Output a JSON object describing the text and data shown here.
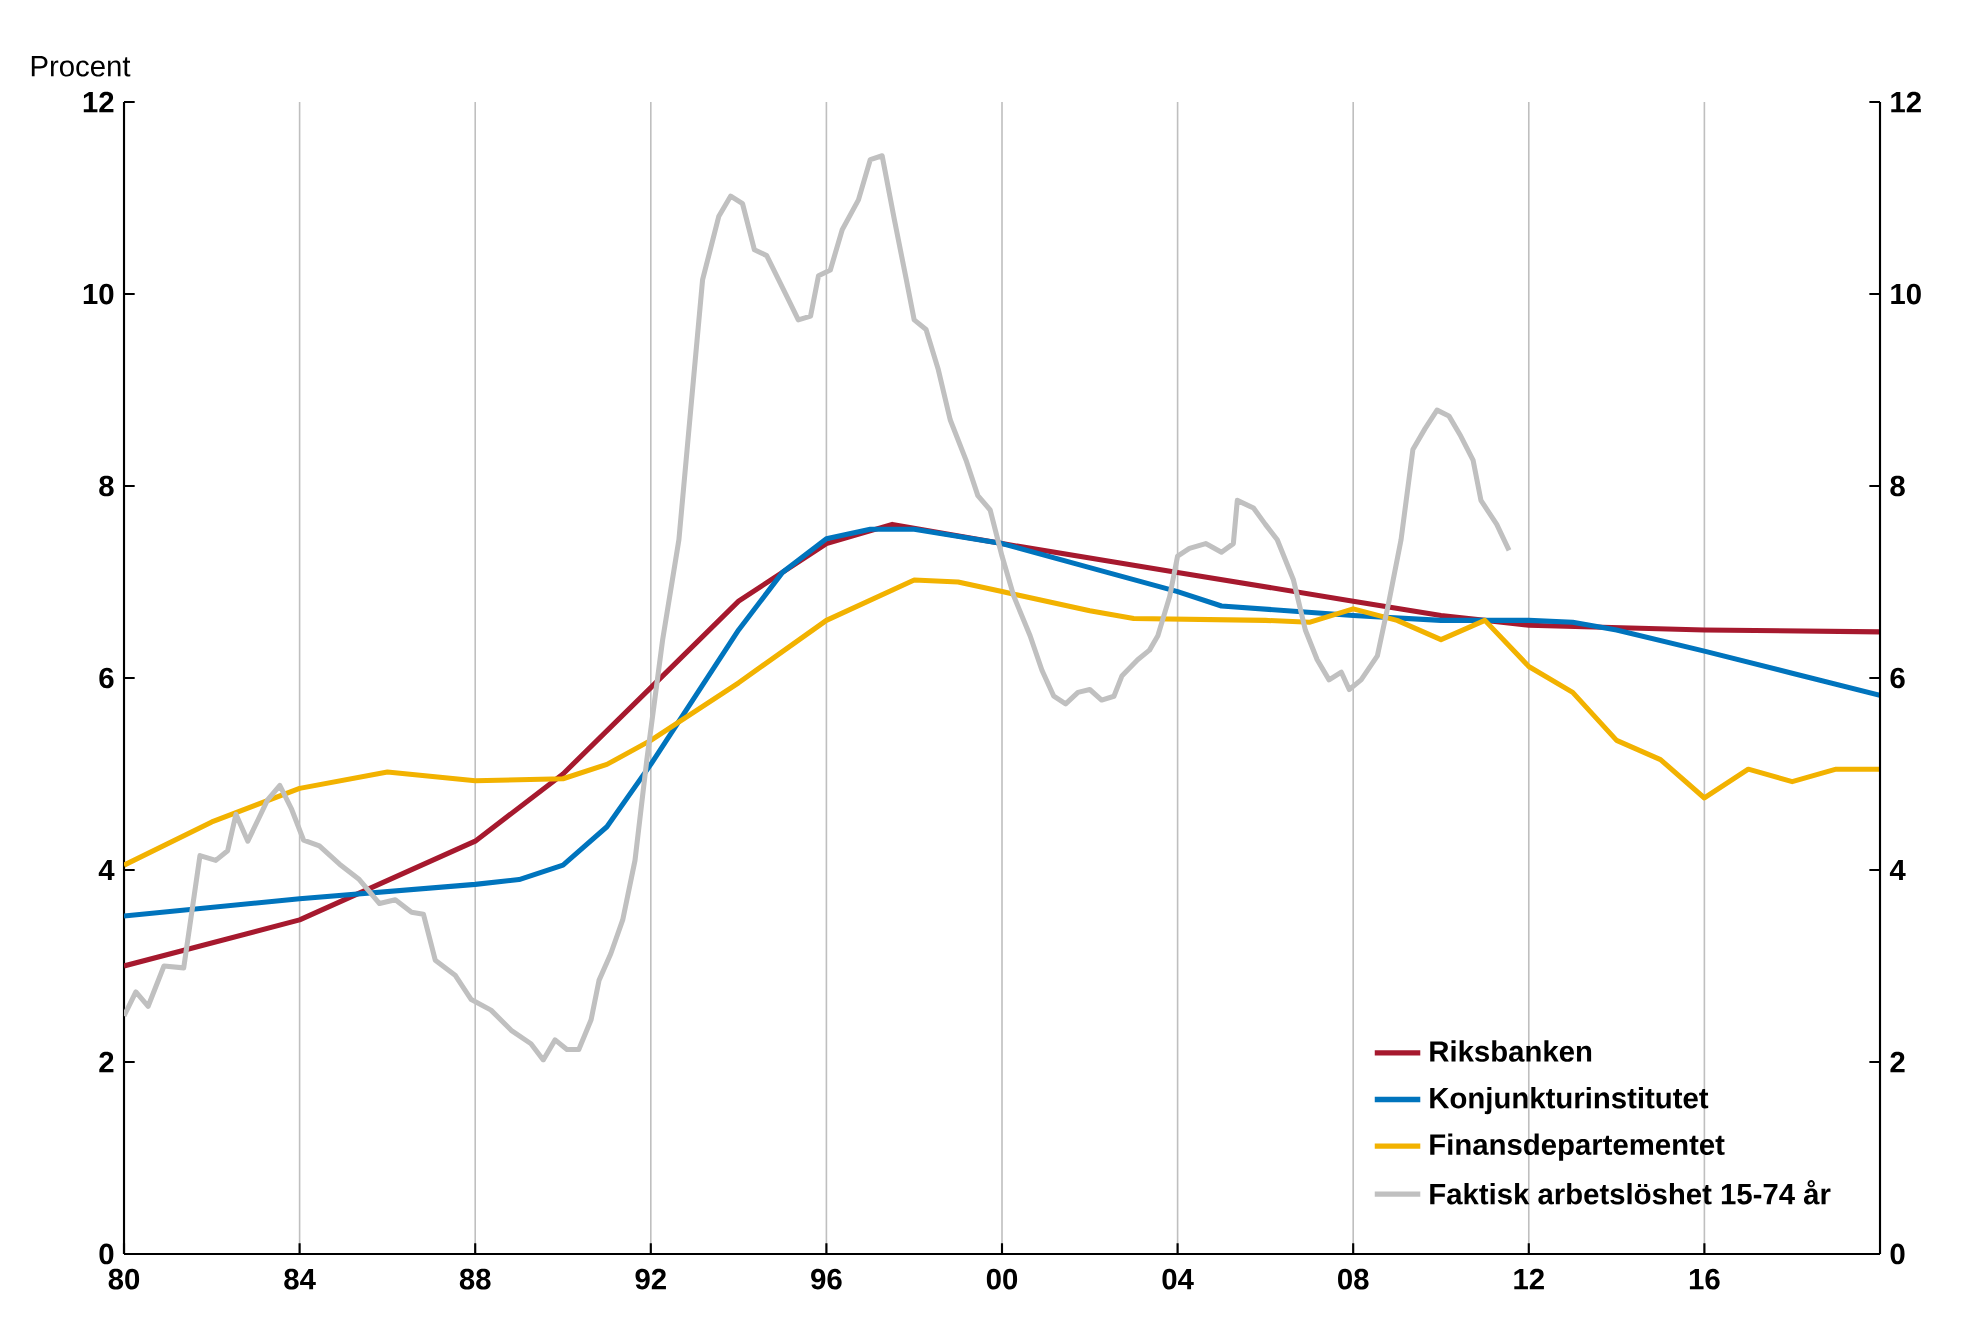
{
  "chart_data": {
    "type": "line",
    "ylabel": "Procent",
    "xlim": [
      1980,
      2020
    ],
    "ylim": [
      0,
      12
    ],
    "y2lim": [
      0,
      12
    ],
    "xticks": [
      {
        "value": 1980,
        "label": "80"
      },
      {
        "value": 1984,
        "label": "84"
      },
      {
        "value": 1988,
        "label": "88"
      },
      {
        "value": 1992,
        "label": "92"
      },
      {
        "value": 1996,
        "label": "96"
      },
      {
        "value": 2000,
        "label": "00"
      },
      {
        "value": 2004,
        "label": "04"
      },
      {
        "value": 2008,
        "label": "08"
      },
      {
        "value": 2012,
        "label": "12"
      },
      {
        "value": 2016,
        "label": "16"
      }
    ],
    "yticks": [
      0,
      2,
      4,
      6,
      8,
      10,
      12
    ],
    "y2ticks": [
      0,
      2,
      4,
      6,
      8,
      10,
      12
    ],
    "grid": "x",
    "legend": "bottom right",
    "marker": "none",
    "line_style": "solid",
    "series": [
      {
        "name": "Riksbanken",
        "color": "#a6192e",
        "x": [
          1980,
          1984,
          1988,
          1990,
          1992,
          1994,
          1996,
          1997.5,
          2000,
          2002,
          2004,
          2006,
          2008,
          2010,
          2012,
          2016,
          2020
        ],
        "values": [
          3.0,
          3.48,
          4.3,
          5.0,
          5.9,
          6.8,
          7.4,
          7.6,
          7.4,
          7.25,
          7.1,
          6.95,
          6.8,
          6.65,
          6.55,
          6.5,
          6.48
        ]
      },
      {
        "name": "Konjunkturinstitutet",
        "color": "#0074bd",
        "x": [
          1980,
          1984,
          1988,
          1989,
          1990,
          1991,
          1992,
          1993,
          1994,
          1995,
          1996,
          1997,
          1998,
          2000,
          2002,
          2004,
          2005,
          2008,
          2010,
          2012,
          2013,
          2014,
          2016,
          2018,
          2020
        ],
        "values": [
          3.52,
          3.7,
          3.85,
          3.9,
          4.05,
          4.45,
          5.1,
          5.8,
          6.5,
          7.1,
          7.45,
          7.55,
          7.55,
          7.4,
          7.15,
          6.9,
          6.75,
          6.65,
          6.6,
          6.6,
          6.58,
          6.5,
          6.28,
          6.05,
          5.82
        ]
      },
      {
        "name": "Finansdepartementet",
        "color": "#f2b200",
        "x": [
          1980,
          1982,
          1984,
          1986,
          1988,
          1990,
          1991,
          1992,
          1994,
          1996,
          1998,
          1999,
          2000,
          2002,
          2003,
          2006,
          2007,
          2008,
          2009,
          2010,
          2011,
          2012,
          2013,
          2014,
          2015,
          2016,
          2017,
          2018,
          2019,
          2020
        ],
        "values": [
          4.05,
          4.5,
          4.85,
          5.02,
          4.93,
          4.95,
          5.1,
          5.35,
          5.95,
          6.6,
          7.02,
          7.0,
          6.9,
          6.7,
          6.62,
          6.6,
          6.58,
          6.72,
          6.6,
          6.4,
          6.6,
          6.12,
          5.85,
          5.35,
          5.15,
          4.75,
          5.05,
          4.92,
          5.05,
          5.05
        ]
      },
      {
        "name": "Faktisk arbetslöshet 15-74 år",
        "color": "#c0c0c0",
        "x": [
          1980.0,
          1980.27,
          1980.55,
          1980.91,
          1981.36,
          1981.73,
          1982.09,
          1982.36,
          1982.55,
          1982.82,
          1983.27,
          1983.55,
          1983.82,
          1984.09,
          1984.45,
          1984.91,
          1985.36,
          1985.82,
          1986.18,
          1986.55,
          1986.82,
          1987.09,
          1987.55,
          1987.91,
          1988.36,
          1988.82,
          1989.27,
          1989.55,
          1989.82,
          1990.09,
          1990.36,
          1990.64,
          1990.82,
          1991.09,
          1991.36,
          1991.64,
          1991.91,
          1992.27,
          1992.64,
          1992.91,
          1993.18,
          1993.55,
          1993.82,
          1994.09,
          1994.36,
          1994.64,
          1994.91,
          1995.18,
          1995.36,
          1995.64,
          1995.82,
          1996.09,
          1996.36,
          1996.73,
          1997.0,
          1997.27,
          1997.55,
          1997.82,
          1998.0,
          1998.27,
          1998.55,
          1998.82,
          1999.18,
          1999.45,
          1999.73,
          2000.0,
          2000.27,
          2000.64,
          2000.91,
          2001.18,
          2001.45,
          2001.73,
          2002.0,
          2002.27,
          2002.55,
          2002.73,
          2003.09,
          2003.36,
          2003.55,
          2003.82,
          2004.0,
          2004.27,
          2004.64,
          2005.0,
          2005.27,
          2005.36,
          2005.73,
          2006.0,
          2006.27,
          2006.64,
          2006.91,
          2007.18,
          2007.45,
          2007.73,
          2007.91,
          2008.18,
          2008.55,
          2008.82,
          2009.09,
          2009.36,
          2009.64,
          2009.91,
          2010.18,
          2010.45,
          2010.73,
          2010.91,
          2011.27,
          2011.55
        ],
        "values": [
          2.48,
          2.73,
          2.58,
          3.0,
          2.98,
          4.15,
          4.1,
          4.2,
          4.58,
          4.3,
          4.73,
          4.88,
          4.63,
          4.31,
          4.25,
          4.06,
          3.9,
          3.65,
          3.69,
          3.56,
          3.54,
          3.06,
          2.9,
          2.65,
          2.54,
          2.33,
          2.19,
          2.02,
          2.23,
          2.13,
          2.13,
          2.44,
          2.85,
          3.13,
          3.48,
          4.1,
          5.15,
          6.4,
          7.44,
          8.8,
          10.15,
          10.81,
          11.02,
          10.94,
          10.46,
          10.4,
          10.15,
          9.9,
          9.73,
          9.77,
          10.19,
          10.25,
          10.67,
          10.98,
          11.4,
          11.44,
          10.77,
          10.15,
          9.73,
          9.63,
          9.21,
          8.69,
          8.27,
          7.9,
          7.75,
          7.27,
          6.85,
          6.44,
          6.08,
          5.81,
          5.73,
          5.85,
          5.88,
          5.77,
          5.81,
          6.02,
          6.19,
          6.29,
          6.44,
          6.85,
          7.27,
          7.35,
          7.4,
          7.31,
          7.4,
          7.85,
          7.77,
          7.6,
          7.44,
          7.02,
          6.5,
          6.19,
          5.98,
          6.06,
          5.88,
          5.98,
          6.23,
          6.81,
          7.44,
          8.38,
          8.6,
          8.79,
          8.73,
          8.52,
          8.27,
          7.85,
          7.6,
          7.33
        ]
      }
    ]
  }
}
